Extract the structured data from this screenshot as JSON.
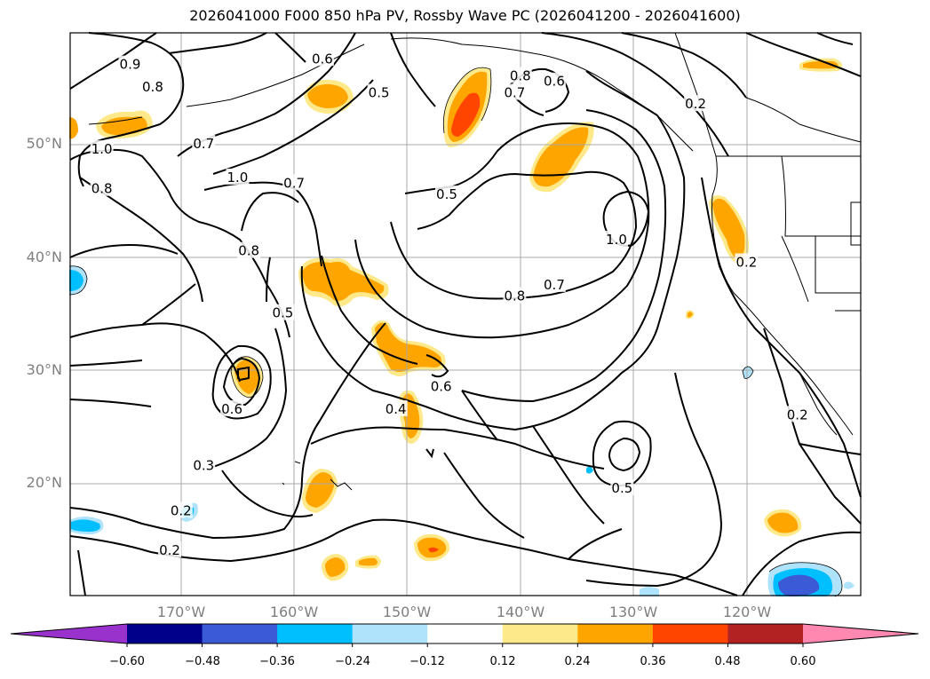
{
  "title": "2026041000 F000 850 hPa PV, Rossby Wave PC (2026041200 - 2026041600)",
  "lat_labels": [
    "50°N",
    "40°N",
    "30°N",
    "20°N"
  ],
  "lon_labels": [
    "170°W",
    "160°W",
    "150°W",
    "140°W",
    "130°W",
    "120°W"
  ],
  "colorbar": {
    "tick_labels": [
      "−0.60",
      "−0.48",
      "−0.36",
      "−0.24",
      "−0.12",
      "0.12",
      "0.24",
      "0.36",
      "0.48",
      "0.60"
    ],
    "colors": [
      "#9932cc",
      "#00008b",
      "#3b5bd6",
      "#00bfff",
      "#aee3fb",
      "#ffffff",
      "#fde98a",
      "#ffa500",
      "#ff4500",
      "#b22222",
      "#ff88b0"
    ]
  },
  "contour_labels": [
    {
      "text": "0.6",
      "lat": 57.5,
      "lon": -157.5
    },
    {
      "text": "0.9",
      "lat": 57.0,
      "lon": -174.5
    },
    {
      "text": "0.8",
      "lat": 55.0,
      "lon": -172.5
    },
    {
      "text": "0.5",
      "lat": 54.5,
      "lon": -152.5
    },
    {
      "text": "0.8",
      "lat": 56.0,
      "lon": -140.0
    },
    {
      "text": "0.7",
      "lat": 54.5,
      "lon": -140.5
    },
    {
      "text": "0.6",
      "lat": 55.5,
      "lon": -137.0
    },
    {
      "text": "0.2",
      "lat": 53.5,
      "lon": -124.5
    },
    {
      "text": "0.7",
      "lat": 50.0,
      "lon": -168.0
    },
    {
      "text": "1.0",
      "lat": 49.5,
      "lon": -177.0
    },
    {
      "text": "0.8",
      "lat": 46.0,
      "lon": -177.0
    },
    {
      "text": "1.0",
      "lat": 47.0,
      "lon": -165.0
    },
    {
      "text": "0.7",
      "lat": 46.5,
      "lon": -160.0
    },
    {
      "text": "0.5",
      "lat": 45.5,
      "lon": -146.5
    },
    {
      "text": "1.0",
      "lat": 41.5,
      "lon": -131.5
    },
    {
      "text": "0.8",
      "lat": 40.5,
      "lon": -164.0
    },
    {
      "text": "0.2",
      "lat": 39.5,
      "lon": -120.0
    },
    {
      "text": "0.7",
      "lat": 37.5,
      "lon": -137.0
    },
    {
      "text": "0.8",
      "lat": 36.5,
      "lon": -140.5
    },
    {
      "text": "0.5",
      "lat": 35.0,
      "lon": -161.0
    },
    {
      "text": "0.6",
      "lat": 28.5,
      "lon": -147.0
    },
    {
      "text": "0.6",
      "lat": 26.5,
      "lon": -165.5
    },
    {
      "text": "0.4",
      "lat": 26.5,
      "lon": -151.0
    },
    {
      "text": "0.2",
      "lat": 26.0,
      "lon": -115.5
    },
    {
      "text": "0.3",
      "lat": 21.5,
      "lon": -168.0
    },
    {
      "text": "0.5",
      "lat": 19.5,
      "lon": -131.0
    },
    {
      "text": "0.2",
      "lat": 17.5,
      "lon": -170.0
    },
    {
      "text": "0.2",
      "lat": 14.0,
      "lon": -171.0
    }
  ]
}
